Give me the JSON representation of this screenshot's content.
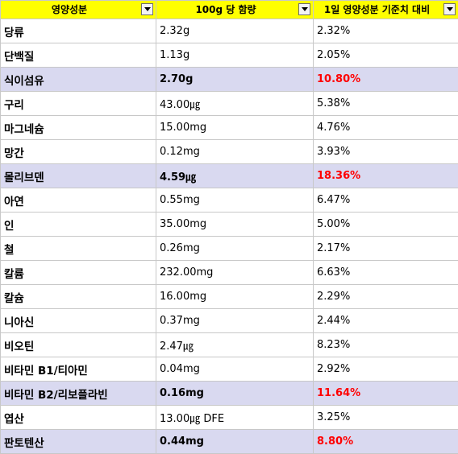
{
  "headers": {
    "name": "영양성분",
    "amount": "100g 당 함량",
    "daily": "1일 영양성분 기준치 대비"
  },
  "filter_icon": "chevron-down-icon",
  "colors": {
    "header_bg": "#ffff00",
    "highlight_bg": "#d9d9f0",
    "highlight_text": "#ff0000"
  },
  "rows": [
    {
      "name": "당류",
      "amount": "2.32g",
      "daily": "2.32%",
      "highlight": false
    },
    {
      "name": "단백질",
      "amount": "1.13g",
      "daily": "2.05%",
      "highlight": false
    },
    {
      "name": "식이섬유",
      "amount": "2.70g",
      "daily": "10.80%",
      "highlight": true
    },
    {
      "name": "구리",
      "amount": "43.00㎍",
      "daily": "5.38%",
      "highlight": false
    },
    {
      "name": "마그네슘",
      "amount": "15.00mg",
      "daily": "4.76%",
      "highlight": false
    },
    {
      "name": "망간",
      "amount": "0.12mg",
      "daily": "3.93%",
      "highlight": false
    },
    {
      "name": "몰리브덴",
      "amount": "4.59㎍",
      "daily": "18.36%",
      "highlight": true
    },
    {
      "name": "아연",
      "amount": "0.55mg",
      "daily": "6.47%",
      "highlight": false
    },
    {
      "name": "인",
      "amount": "35.00mg",
      "daily": "5.00%",
      "highlight": false
    },
    {
      "name": "철",
      "amount": "0.26mg",
      "daily": "2.17%",
      "highlight": false
    },
    {
      "name": "칼륨",
      "amount": "232.00mg",
      "daily": "6.63%",
      "highlight": false
    },
    {
      "name": "칼슘",
      "amount": "16.00mg",
      "daily": "2.29%",
      "highlight": false
    },
    {
      "name": "니아신",
      "amount": "0.37mg",
      "daily": "2.44%",
      "highlight": false
    },
    {
      "name": "비오틴",
      "amount": "2.47㎍",
      "daily": "8.23%",
      "highlight": false
    },
    {
      "name": "비타민 B1/티아민",
      "amount": "0.04mg",
      "daily": "2.92%",
      "highlight": false
    },
    {
      "name": "비타민 B2/리보플라빈",
      "amount": "0.16mg",
      "daily": "11.64%",
      "highlight": true
    },
    {
      "name": "엽산",
      "amount": "13.00㎍ DFE",
      "daily": "3.25%",
      "highlight": false
    },
    {
      "name": "판토텐산",
      "amount": "0.44mg",
      "daily": "8.80%",
      "highlight": true
    }
  ]
}
